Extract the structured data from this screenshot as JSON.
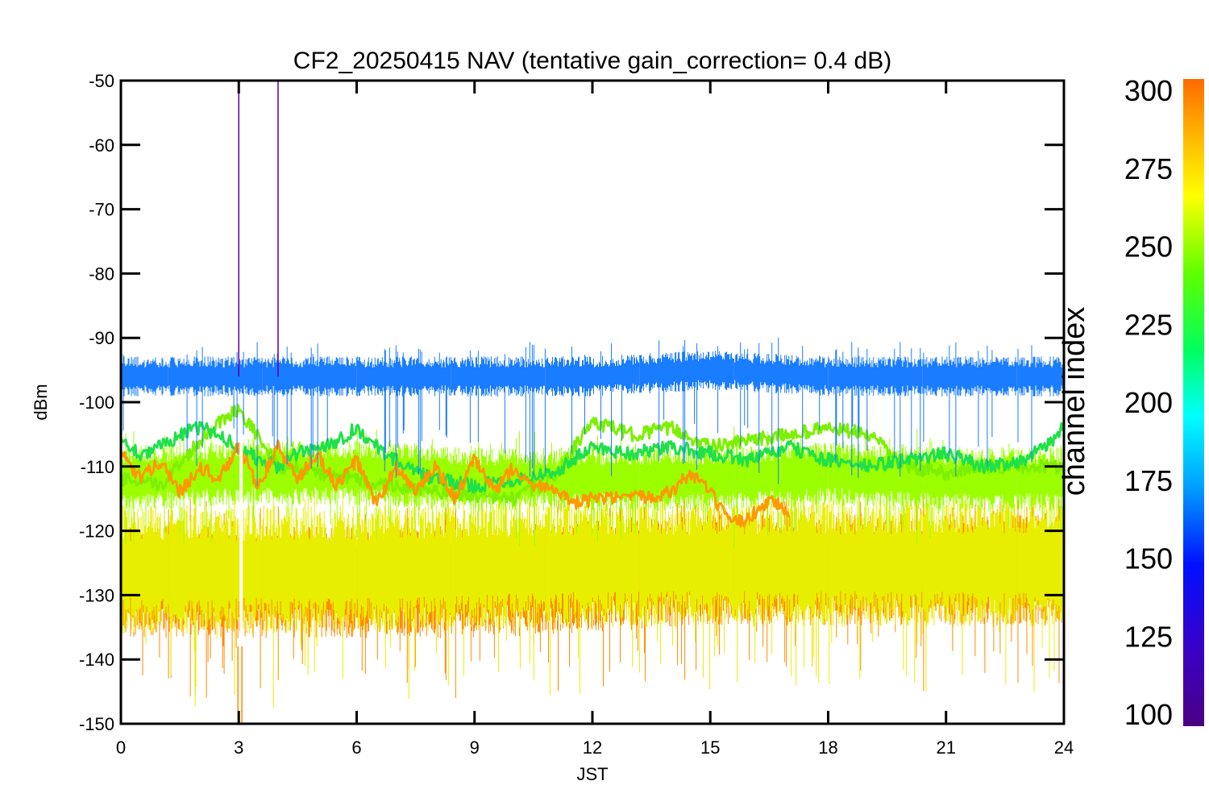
{
  "chart_data": {
    "type": "line",
    "title": "CF2_20250415 NAV (tentative gain_correction=  0.4 dB)",
    "xlabel": "JST",
    "ylabel": "dBm",
    "xlim": [
      0,
      24
    ],
    "ylim": [
      -150,
      -50
    ],
    "x_ticks": [
      "0",
      "3",
      "6",
      "9",
      "12",
      "15",
      "18",
      "21",
      "24"
    ],
    "y_ticks": [
      "-50",
      "-60",
      "-70",
      "-80",
      "-90",
      "-100",
      "-110",
      "-120",
      "-130",
      "-140",
      "-150"
    ],
    "colorbar": {
      "label": "channel index",
      "range": [
        100,
        300
      ],
      "ticks": [
        "300",
        "275",
        "250",
        "225",
        "200",
        "175",
        "150",
        "125",
        "100"
      ],
      "colormap": "rainbow"
    },
    "series": [
      {
        "channel": 290,
        "color": "#ff8c00",
        "band_center": -128,
        "band_halfwidth": 7,
        "x": [
          0,
          3,
          6,
          9,
          12,
          15,
          18,
          21,
          24
        ],
        "y": [
          -128,
          -128,
          -128,
          -128,
          -127,
          -126,
          -126,
          -126,
          -126
        ]
      },
      {
        "channel": 265,
        "color": "#e8ee00",
        "band_center": -126,
        "band_halfwidth": 8,
        "x": [
          0,
          6,
          12,
          18,
          24
        ],
        "y": [
          -126,
          -126,
          -125,
          -125,
          -125
        ]
      },
      {
        "channel": 255,
        "color": "#9cff00",
        "band_center": -112,
        "band_halfwidth": 4,
        "x": [
          0,
          3,
          6,
          9,
          12,
          15,
          18,
          21,
          24
        ],
        "y": [
          -112,
          -111,
          -111,
          -112,
          -112,
          -112,
          -111,
          -112,
          -112
        ]
      },
      {
        "channel": 245,
        "color": "#7cf000",
        "x": [
          0,
          1,
          2,
          2.5,
          3,
          4,
          6,
          8,
          10,
          11,
          12,
          13,
          14,
          15,
          16,
          17,
          18,
          19,
          20,
          21,
          22,
          23,
          24
        ],
        "y": [
          -112,
          -113,
          -106,
          -103,
          -101,
          -110,
          -112,
          -114,
          -115,
          -112,
          -103,
          -105,
          -104,
          -107,
          -106,
          -105,
          -104,
          -105,
          -110,
          -111,
          -110,
          -110,
          -110
        ]
      },
      {
        "channel": 230,
        "color": "#20e04a",
        "x": [
          0,
          0.5,
          1,
          1.5,
          2,
          2.5,
          3,
          3.5,
          4,
          4.5,
          5,
          5.5,
          6,
          6.5,
          7,
          7.5,
          8,
          9,
          10,
          11,
          12,
          13,
          14,
          15,
          16,
          17,
          18,
          19,
          20,
          21,
          22,
          23,
          23.5,
          24
        ],
        "y": [
          -106,
          -108,
          -107,
          -105,
          -104,
          -105,
          -107,
          -109,
          -110,
          -108,
          -107,
          -106,
          -104,
          -107,
          -109,
          -111,
          -112,
          -113,
          -112,
          -111,
          -107,
          -108,
          -107,
          -108,
          -109,
          -107,
          -109,
          -110,
          -109,
          -108,
          -110,
          -109,
          -107,
          -104
        ]
      },
      {
        "channel": 285,
        "color": "#ff9900",
        "x": [
          0,
          0.5,
          1,
          1.5,
          2,
          2.5,
          3,
          3.5,
          4,
          4.5,
          5,
          5.5,
          6,
          6.5,
          7,
          7.5,
          8,
          8.5,
          9,
          9.5,
          10,
          10.5,
          11,
          11.5,
          12,
          13,
          14,
          14.5,
          15,
          15.5,
          16,
          16.5,
          17
        ],
        "y": [
          -108,
          -112,
          -109,
          -114,
          -110,
          -112,
          -107,
          -113,
          -107,
          -112,
          -108,
          -113,
          -109,
          -116,
          -110,
          -114,
          -110,
          -115,
          -109,
          -114,
          -110,
          -113,
          -113,
          -116,
          -115,
          -115,
          -114,
          -111,
          -114,
          -119,
          -118,
          -115,
          -117
        ]
      },
      {
        "channel": 150,
        "color": "#1a7cff",
        "band_center": -96,
        "band_halfwidth": 2.5,
        "x": [
          0,
          3,
          6,
          9,
          12,
          15,
          18,
          21,
          24
        ],
        "y": [
          -96,
          -96,
          -96,
          -96,
          -96,
          -95,
          -96,
          -96,
          -96
        ]
      },
      {
        "channel": 120,
        "color": "#5a00aa",
        "note_x": [
          3.0,
          4.0
        ]
      }
    ]
  }
}
